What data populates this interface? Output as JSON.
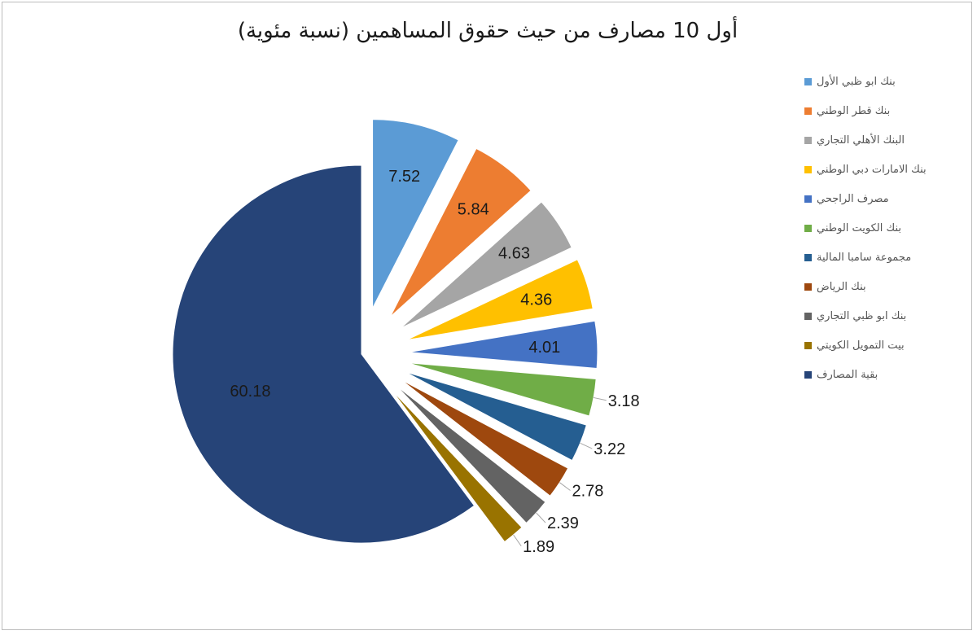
{
  "chart_data": {
    "type": "pie",
    "title": "أول 10 مصارف من حيث حقوق المساهمين (نسبة مئوية)",
    "slices": [
      {
        "label": "بنك ابو ظبي الأول",
        "value": 7.52,
        "color": "#5b9bd5"
      },
      {
        "label": "بنك قطر الوطني",
        "value": 5.84,
        "color": "#ed7d31"
      },
      {
        "label": "البنك الأهلي التجاري",
        "value": 4.63,
        "color": "#a5a5a5"
      },
      {
        "label": "بنك الامارات دبي الوطني",
        "value": 4.36,
        "color": "#ffc000"
      },
      {
        "label": "مصرف الراجحي",
        "value": 4.01,
        "color": "#4472c4"
      },
      {
        "label": "بنك الكويت الوطني",
        "value": 3.18,
        "color": "#70ad47"
      },
      {
        "label": "مجموعة سامبا المالية",
        "value": 3.22,
        "color": "#255e91"
      },
      {
        "label": "بنك الرياض",
        "value": 2.78,
        "color": "#9e480e"
      },
      {
        "label": "بنك ابو ظبي التجاري",
        "value": 2.39,
        "color": "#636363"
      },
      {
        "label": "بيت التمويل الكويتي",
        "value": 1.89,
        "color": "#997300"
      },
      {
        "label": "بقية المصارف",
        "value": 60.18,
        "color": "#264478"
      }
    ],
    "legend_position": "right"
  }
}
